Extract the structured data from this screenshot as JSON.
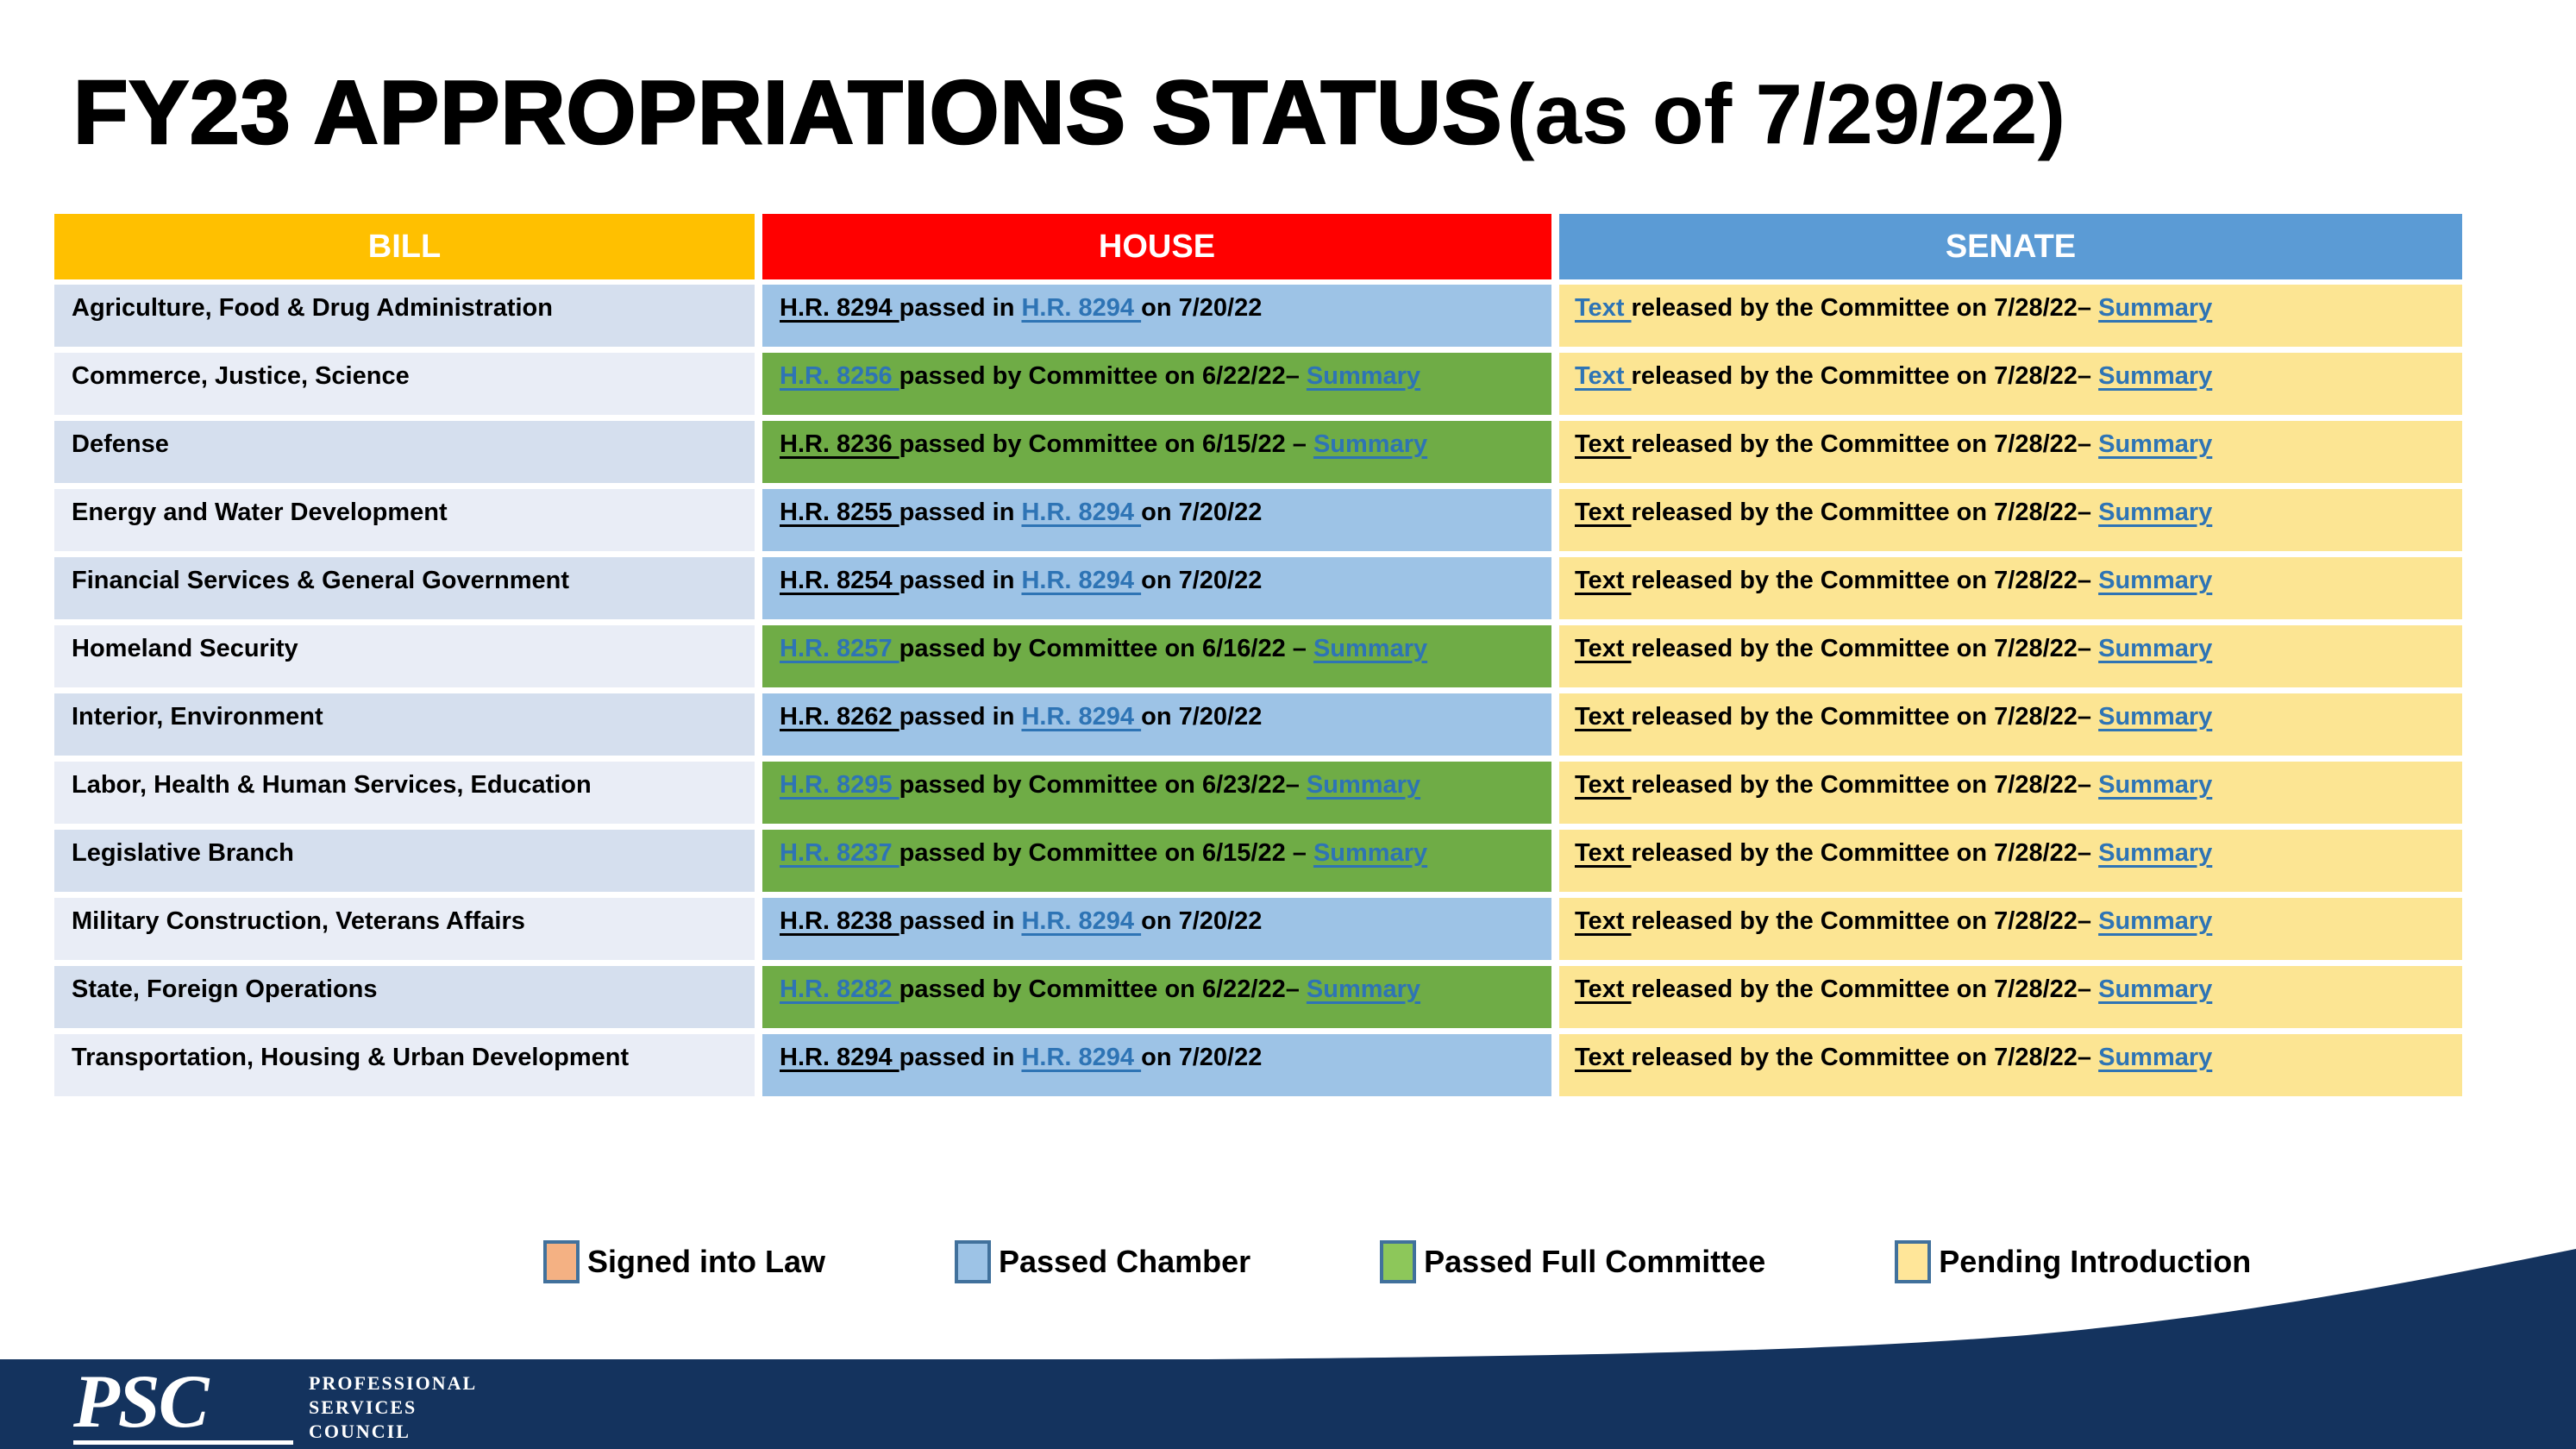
{
  "title": {
    "main": "FY23 APPROPRIATIONS STATUS",
    "suffix": "(as of 7/29/22)"
  },
  "table": {
    "headers": [
      {
        "label": "BILL",
        "color": "#FFC000"
      },
      {
        "label": "HOUSE",
        "color": "#FF0000"
      },
      {
        "label": "SENATE",
        "color": "#5B9BD5"
      }
    ],
    "rows": [
      {
        "bill": "Agriculture, Food & Drug Administration",
        "house": {
          "status": "passed-chamber",
          "segments": [
            {
              "text": "H.R. 8294 ",
              "style": "link-black"
            },
            {
              "text": "passed in ",
              "style": "plain"
            },
            {
              "text": "H.R. 8294 ",
              "style": "link-blue"
            },
            {
              "text": "on 7/20/22",
              "style": "plain"
            }
          ]
        },
        "senate": {
          "status": "pending-introduction",
          "segments": [
            {
              "text": "Text ",
              "style": "link-blue"
            },
            {
              "text": "released by the Committee on 7/28/22– ",
              "style": "plain"
            },
            {
              "text": "Summary",
              "style": "link-blue"
            }
          ]
        }
      },
      {
        "bill": "Commerce, Justice, Science",
        "house": {
          "status": "passed-committee",
          "segments": [
            {
              "text": "H.R. 8256 ",
              "style": "link-blue"
            },
            {
              "text": "passed by Committee on 6/22/22– ",
              "style": "plain"
            },
            {
              "text": "Summary",
              "style": "link-blue"
            }
          ]
        },
        "senate": {
          "status": "pending-introduction",
          "segments": [
            {
              "text": "Text ",
              "style": "link-blue"
            },
            {
              "text": "released by the Committee on 7/28/22– ",
              "style": "plain"
            },
            {
              "text": "Summary",
              "style": "link-blue"
            }
          ]
        }
      },
      {
        "bill": "Defense",
        "house": {
          "status": "passed-committee",
          "segments": [
            {
              "text": "H.R. 8236 ",
              "style": "link-black"
            },
            {
              "text": "passed by Committee on 6/15/22 – ",
              "style": "plain"
            },
            {
              "text": "Summary",
              "style": "link-blue"
            }
          ]
        },
        "senate": {
          "status": "pending-introduction",
          "segments": [
            {
              "text": "Text ",
              "style": "link-black"
            },
            {
              "text": "released by the Committee on 7/28/22– ",
              "style": "plain"
            },
            {
              "text": "Summary",
              "style": "link-blue"
            }
          ]
        }
      },
      {
        "bill": "Energy and Water Development",
        "house": {
          "status": "passed-chamber",
          "segments": [
            {
              "text": "H.R. 8255 ",
              "style": "link-black"
            },
            {
              "text": "passed in ",
              "style": "plain"
            },
            {
              "text": "H.R. 8294 ",
              "style": "link-blue"
            },
            {
              "text": "on 7/20/22",
              "style": "plain"
            }
          ]
        },
        "senate": {
          "status": "pending-introduction",
          "segments": [
            {
              "text": "Text ",
              "style": "link-black"
            },
            {
              "text": "released by the Committee on 7/28/22– ",
              "style": "plain"
            },
            {
              "text": "Summary",
              "style": "link-blue"
            }
          ]
        }
      },
      {
        "bill": "Financial Services & General Government",
        "house": {
          "status": "passed-chamber",
          "segments": [
            {
              "text": "H.R. 8254 ",
              "style": "link-black"
            },
            {
              "text": "passed in ",
              "style": "plain"
            },
            {
              "text": "H.R. 8294 ",
              "style": "link-blue"
            },
            {
              "text": "on 7/20/22",
              "style": "plain"
            }
          ]
        },
        "senate": {
          "status": "pending-introduction",
          "segments": [
            {
              "text": "Text ",
              "style": "link-black"
            },
            {
              "text": "released by the Committee on 7/28/22– ",
              "style": "plain"
            },
            {
              "text": "Summary",
              "style": "link-blue"
            }
          ]
        }
      },
      {
        "bill": "Homeland Security",
        "house": {
          "status": "passed-committee",
          "segments": [
            {
              "text": "H.R. 8257 ",
              "style": "link-blue"
            },
            {
              "text": "passed by Committee on 6/16/22 – ",
              "style": "plain"
            },
            {
              "text": "Summary",
              "style": "link-blue"
            }
          ]
        },
        "senate": {
          "status": "pending-introduction",
          "segments": [
            {
              "text": "Text ",
              "style": "link-black"
            },
            {
              "text": "released by the Committee on 7/28/22– ",
              "style": "plain"
            },
            {
              "text": "Summary",
              "style": "link-blue"
            }
          ]
        }
      },
      {
        "bill": "Interior, Environment",
        "house": {
          "status": "passed-chamber",
          "segments": [
            {
              "text": "H.R. 8262 ",
              "style": "link-black"
            },
            {
              "text": "passed in ",
              "style": "plain"
            },
            {
              "text": "H.R. 8294 ",
              "style": "link-blue"
            },
            {
              "text": "on 7/20/22",
              "style": "plain"
            }
          ]
        },
        "senate": {
          "status": "pending-introduction",
          "segments": [
            {
              "text": "Text ",
              "style": "link-black"
            },
            {
              "text": "released by the Committee on 7/28/22– ",
              "style": "plain"
            },
            {
              "text": "Summary",
              "style": "link-blue"
            }
          ]
        }
      },
      {
        "bill": "Labor, Health & Human Services, Education",
        "house": {
          "status": "passed-committee",
          "segments": [
            {
              "text": "H.R. 8295 ",
              "style": "link-blue"
            },
            {
              "text": "passed by Committee on 6/23/22– ",
              "style": "plain"
            },
            {
              "text": "Summary",
              "style": "link-blue"
            }
          ]
        },
        "senate": {
          "status": "pending-introduction",
          "segments": [
            {
              "text": "Text ",
              "style": "link-black"
            },
            {
              "text": "released by the Committee on 7/28/22– ",
              "style": "plain"
            },
            {
              "text": "Summary",
              "style": "link-blue"
            }
          ]
        }
      },
      {
        "bill": "Legislative Branch",
        "house": {
          "status": "passed-committee",
          "segments": [
            {
              "text": "H.R. 8237 ",
              "style": "link-blue"
            },
            {
              "text": "passed by Committee on 6/15/22 – ",
              "style": "plain"
            },
            {
              "text": "Summary",
              "style": "link-blue"
            }
          ]
        },
        "senate": {
          "status": "pending-introduction",
          "segments": [
            {
              "text": "Text ",
              "style": "link-black"
            },
            {
              "text": "released by the Committee on 7/28/22– ",
              "style": "plain"
            },
            {
              "text": "Summary",
              "style": "link-blue"
            }
          ]
        }
      },
      {
        "bill": "Military Construction, Veterans Affairs",
        "house": {
          "status": "passed-chamber",
          "segments": [
            {
              "text": "H.R. 8238 ",
              "style": "link-black"
            },
            {
              "text": "passed in ",
              "style": "plain"
            },
            {
              "text": "H.R. 8294 ",
              "style": "link-blue"
            },
            {
              "text": "on 7/20/22",
              "style": "plain"
            }
          ]
        },
        "senate": {
          "status": "pending-introduction",
          "segments": [
            {
              "text": "Text ",
              "style": "link-black"
            },
            {
              "text": "released by the Committee on 7/28/22– ",
              "style": "plain"
            },
            {
              "text": "Summary",
              "style": "link-blue"
            }
          ]
        }
      },
      {
        "bill": "State, Foreign Operations",
        "house": {
          "status": "passed-committee",
          "segments": [
            {
              "text": "H.R. 8282 ",
              "style": "link-blue"
            },
            {
              "text": "passed by Committee on 6/22/22– ",
              "style": "plain"
            },
            {
              "text": "Summary",
              "style": "link-blue"
            }
          ]
        },
        "senate": {
          "status": "pending-introduction",
          "segments": [
            {
              "text": "Text ",
              "style": "link-black"
            },
            {
              "text": "released by the Committee on 7/28/22– ",
              "style": "plain"
            },
            {
              "text": "Summary",
              "style": "link-blue"
            }
          ]
        }
      },
      {
        "bill": "Transportation, Housing & Urban Development",
        "house": {
          "status": "passed-chamber",
          "segments": [
            {
              "text": "H.R. 8294 ",
              "style": "link-black"
            },
            {
              "text": "passed in ",
              "style": "plain"
            },
            {
              "text": "H.R. 8294 ",
              "style": "link-blue"
            },
            {
              "text": "on 7/20/22",
              "style": "plain"
            }
          ]
        },
        "senate": {
          "status": "pending-introduction",
          "segments": [
            {
              "text": "Text ",
              "style": "link-black"
            },
            {
              "text": "released by the Committee on 7/28/22– ",
              "style": "plain"
            },
            {
              "text": "Summary",
              "style": "link-blue"
            }
          ]
        }
      }
    ]
  },
  "legend": [
    {
      "label": "Signed into Law",
      "color": "#F4B183"
    },
    {
      "label": "Passed Chamber",
      "color": "#9DC3E6"
    },
    {
      "label": "Passed Full Committee",
      "color": "#8DC75A"
    },
    {
      "label": "Pending Introduction",
      "color": "#FFE699"
    }
  ],
  "footer": {
    "logo_text": "PSC",
    "logo_sub": [
      "PROFESSIONAL",
      "SERVICES",
      "COUNCIL"
    ]
  },
  "colors": {
    "status": {
      "signed-law": "#F4B183",
      "passed-chamber": "#9DC3E6",
      "passed-committee": "#6FAC46",
      "pending-introduction": "#FCE593"
    },
    "bill_row_odd": "#D5DFEE",
    "bill_row_even": "#E9EDF6",
    "link_blue": "#2E74B5",
    "navy": "#14335E",
    "legend_border": "#41719C"
  }
}
